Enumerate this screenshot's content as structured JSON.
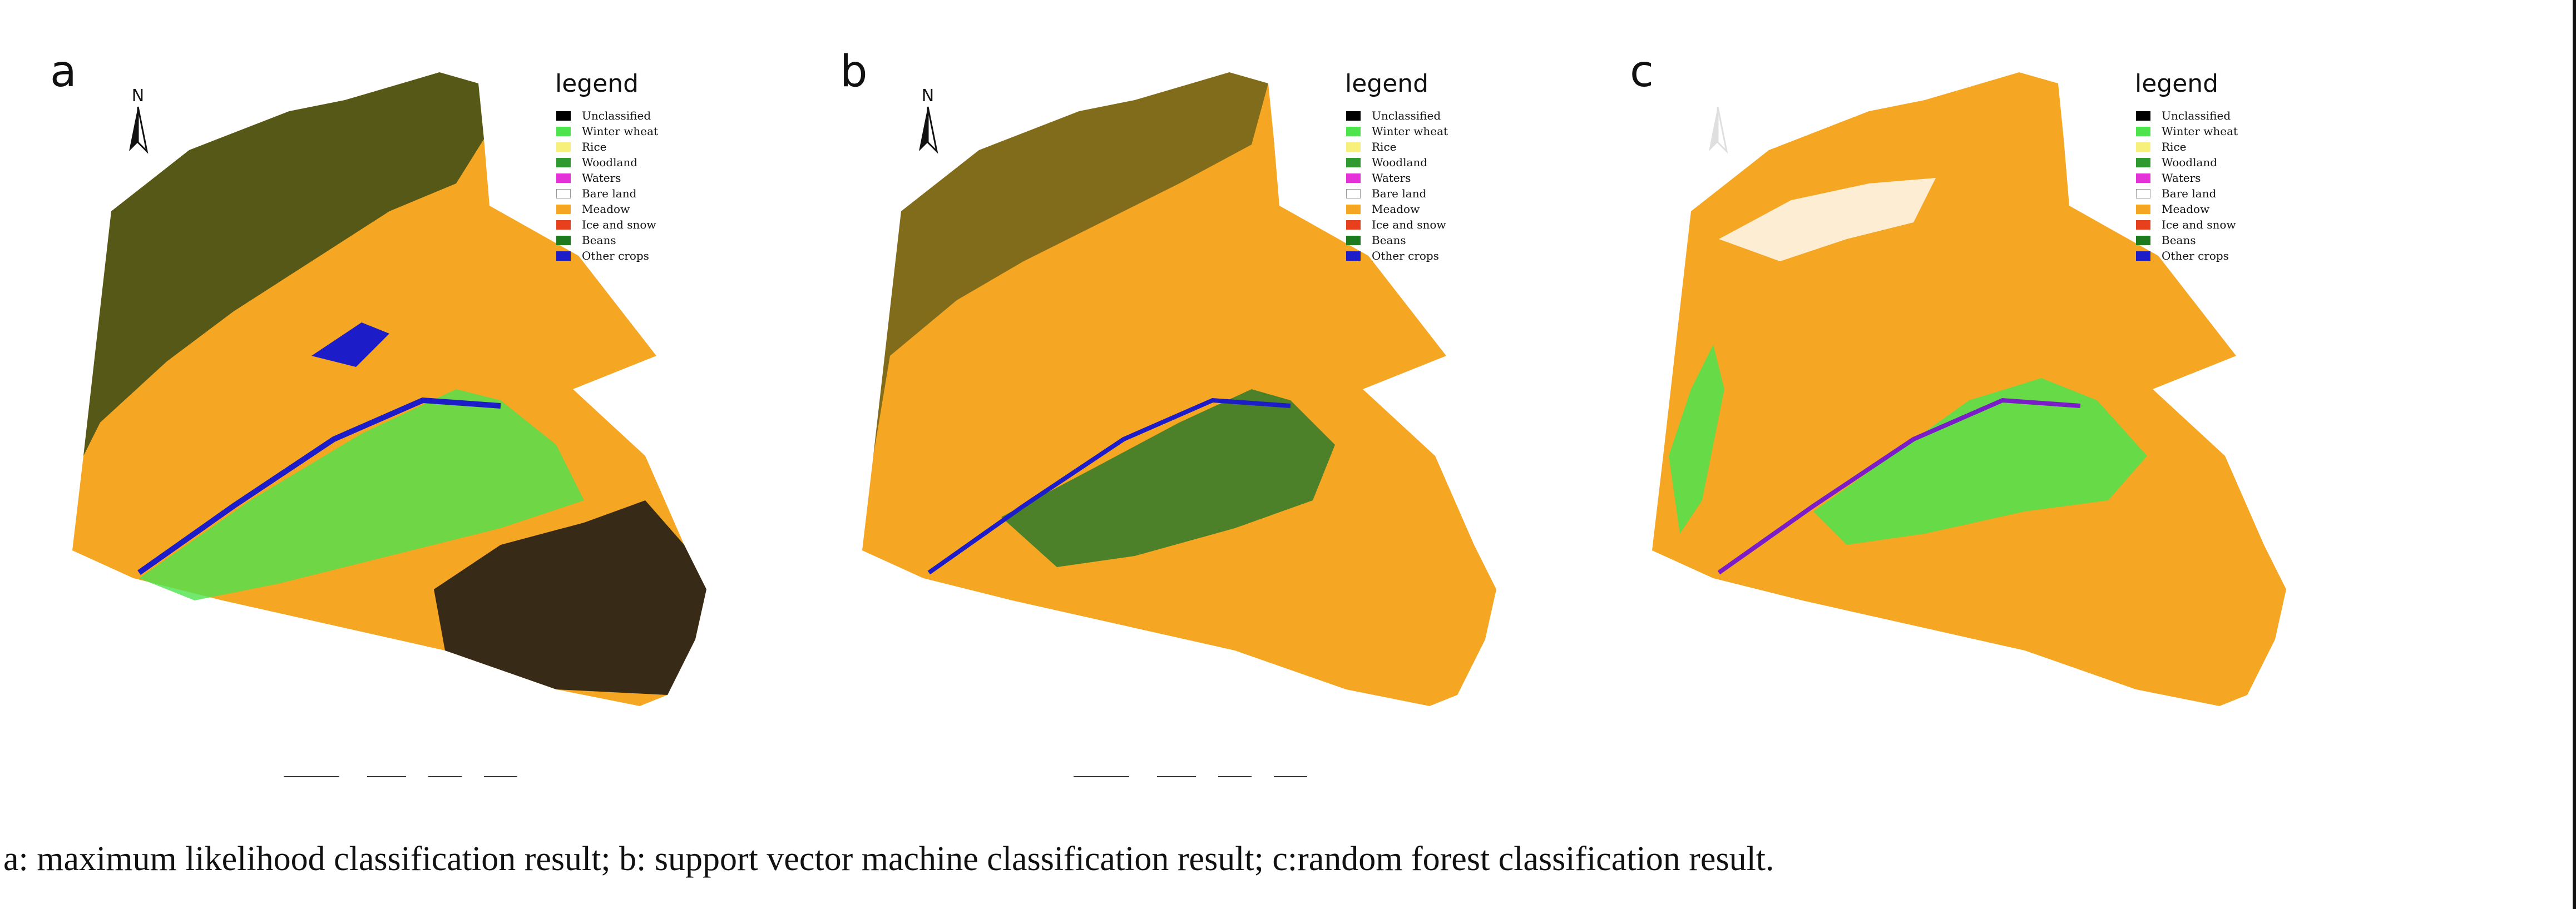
{
  "panels": [
    {
      "letter": "a",
      "north_label": "N",
      "legend_title": "legend"
    },
    {
      "letter": "b",
      "north_label": "N",
      "legend_title": "legend"
    },
    {
      "letter": "c",
      "north_label": "",
      "legend_title": "legend"
    }
  ],
  "legend_items": [
    {
      "label": "Unclassified",
      "color": "#000000"
    },
    {
      "label": "Winter wheat",
      "color": "#4ee44e"
    },
    {
      "label": "Rice",
      "color": "#f7f07a"
    },
    {
      "label": "Woodland",
      "color": "#2f9a2f"
    },
    {
      "label": "Waters",
      "color": "#e531d8"
    },
    {
      "label": "Bare land",
      "color": "#ffffff"
    },
    {
      "label": "Meadow",
      "color": "#f5a623"
    },
    {
      "label": "Ice and snow",
      "color": "#e8401c"
    },
    {
      "label": "Beans",
      "color": "#1e7a1e"
    },
    {
      "label": "Other crops",
      "color": "#1c1cc8"
    }
  ],
  "caption": "a: maximum likelihood classification result; b: support vector machine classification result; c:random forest classification result."
}
